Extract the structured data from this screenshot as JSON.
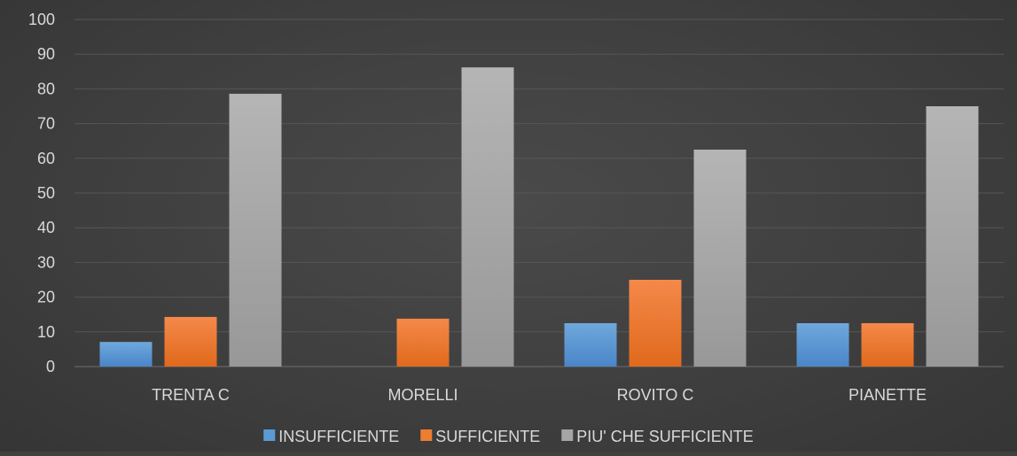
{
  "chart_data": {
    "type": "bar",
    "categories": [
      "TRENTA C",
      "MORELLI",
      "ROVITO C",
      "PIANETTE"
    ],
    "series": [
      {
        "name": "INSUFFICIENTE",
        "values": [
          7.1,
          0,
          12.5,
          12.5
        ],
        "color": "#5b9bd5"
      },
      {
        "name": "SUFFICIENTE",
        "values": [
          14.3,
          13.8,
          25,
          12.5
        ],
        "color": "#ed7d31"
      },
      {
        "name": "PIU' CHE SUFFICIENTE",
        "values": [
          78.6,
          86.2,
          62.5,
          75
        ],
        "color": "#a5a5a5"
      }
    ],
    "ylim": [
      0,
      100
    ],
    "yticks": [
      0,
      10,
      20,
      30,
      40,
      50,
      60,
      70,
      80,
      90,
      100
    ],
    "grid": true,
    "legend_position": "bottom",
    "title": "",
    "xlabel": "",
    "ylabel": ""
  }
}
